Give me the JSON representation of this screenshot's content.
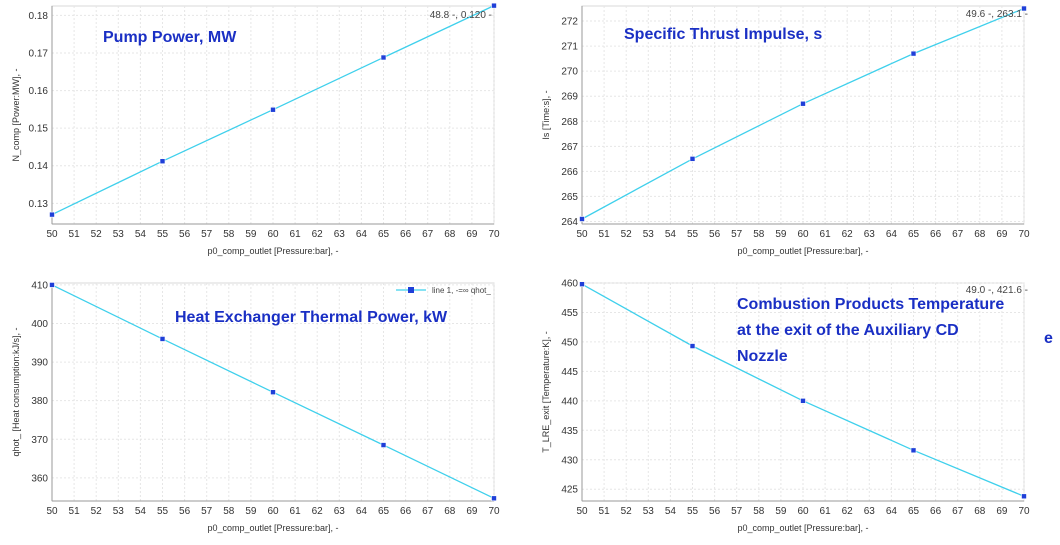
{
  "chart_data": [
    {
      "type": "line",
      "title": "Pump Power, MW",
      "xlabel": "p0_comp_outlet [Pressure:bar],   -",
      "ylabel": "N_comp [Power:MW],   -",
      "readout": "48.8 -, 0.120 -",
      "x": [
        50,
        55,
        60,
        65,
        70
      ],
      "series": [
        {
          "values": [
            0.127,
            0.1412,
            0.1549,
            0.1688,
            0.1826
          ]
        }
      ],
      "xlim": [
        50,
        70
      ],
      "ylim": [
        0.1245,
        0.1825
      ],
      "xticks": [
        "50",
        "51",
        "52",
        "53",
        "54",
        "55",
        "56",
        "57",
        "58",
        "59",
        "60",
        "61",
        "62",
        "63",
        "64",
        "65",
        "66",
        "67",
        "68",
        "69",
        "70"
      ],
      "yticks": [
        0.13,
        0.14,
        0.15,
        0.16,
        0.17,
        0.18
      ],
      "ytick_labels": [
        "0.13",
        "0.14",
        "0.15",
        "0.16",
        "0.17",
        "0.18"
      ],
      "grid": true,
      "line_color": "#3fd0ec",
      "marker_color": "#1f3fd8"
    },
    {
      "type": "line",
      "title": "Specific Thrust Impulse, s",
      "xlabel": "p0_comp_outlet [Pressure:bar],   -",
      "ylabel": "Is [Time:s],   -",
      "readout": "49.6 -, 263.1 -",
      "x": [
        50,
        55,
        60,
        65,
        70
      ],
      "series": [
        {
          "values": [
            264.1,
            266.5,
            268.7,
            270.7,
            272.5
          ]
        }
      ],
      "xlim": [
        50,
        70
      ],
      "ylim": [
        263.9,
        272.6
      ],
      "xticks": [
        "50",
        "51",
        "52",
        "53",
        "54",
        "55",
        "56",
        "57",
        "58",
        "59",
        "60",
        "61",
        "62",
        "63",
        "64",
        "65",
        "66",
        "67",
        "68",
        "69",
        "70"
      ],
      "yticks": [
        264,
        265,
        266,
        267,
        268,
        269,
        270,
        271,
        272
      ],
      "ytick_labels": [
        "264",
        "265",
        "266",
        "267",
        "268",
        "269",
        "270",
        "271",
        "272"
      ],
      "grid": true,
      "line_color": "#3fd0ec",
      "marker_color": "#1f3fd8"
    },
    {
      "type": "line",
      "title": "Heat Exchanger Thermal Power, kW",
      "xlabel": "p0_comp_outlet [Pressure:bar],   -",
      "ylabel": "qhot_ [Heat consumption:kJ/s],   -",
      "legend": "line 1, -=∞ qhot_",
      "x": [
        50,
        55,
        60,
        65,
        70
      ],
      "series": [
        {
          "values": [
            410,
            396,
            382.2,
            368.5,
            354.7
          ]
        }
      ],
      "xlim": [
        50,
        70
      ],
      "ylim": [
        354,
        410.5
      ],
      "xticks": [
        "50",
        "51",
        "52",
        "53",
        "54",
        "55",
        "56",
        "57",
        "58",
        "59",
        "60",
        "61",
        "62",
        "63",
        "64",
        "65",
        "66",
        "67",
        "68",
        "69",
        "70"
      ],
      "yticks": [
        360,
        370,
        380,
        390,
        400,
        410
      ],
      "ytick_labels": [
        "360",
        "370",
        "380",
        "390",
        "400",
        "410"
      ],
      "grid": true,
      "line_color": "#3fd0ec",
      "marker_color": "#1f3fd8"
    },
    {
      "type": "line",
      "title": "Combustion Products Temperature at the exit of the Auxiliary CD Nozzle",
      "title_lines": [
        "Combustion Products Temperature",
        "at the exit of the Auxiliary CD",
        "Nozzle"
      ],
      "xlabel": "p0_comp_outlet [Pressure:bar],   -",
      "ylabel": "T_LRE_exit [Temperature:K],   -",
      "readout": "49.0 -, 421.6 -",
      "x": [
        50,
        55,
        60,
        65,
        70
      ],
      "series": [
        {
          "values": [
            459.8,
            449.3,
            440,
            431.6,
            423.8
          ]
        }
      ],
      "xlim": [
        50,
        70
      ],
      "ylim": [
        423,
        460
      ],
      "xticks": [
        "50",
        "51",
        "52",
        "53",
        "54",
        "55",
        "56",
        "57",
        "58",
        "59",
        "60",
        "61",
        "62",
        "63",
        "64",
        "65",
        "66",
        "67",
        "68",
        "69",
        "70"
      ],
      "yticks": [
        425,
        430,
        435,
        440,
        445,
        450,
        455,
        460
      ],
      "ytick_labels": [
        "425",
        "430",
        "435",
        "440",
        "445",
        "450",
        "455",
        "460"
      ],
      "grid": true,
      "line_color": "#3fd0ec",
      "marker_color": "#1f3fd8"
    }
  ],
  "edge_glyph": "e"
}
